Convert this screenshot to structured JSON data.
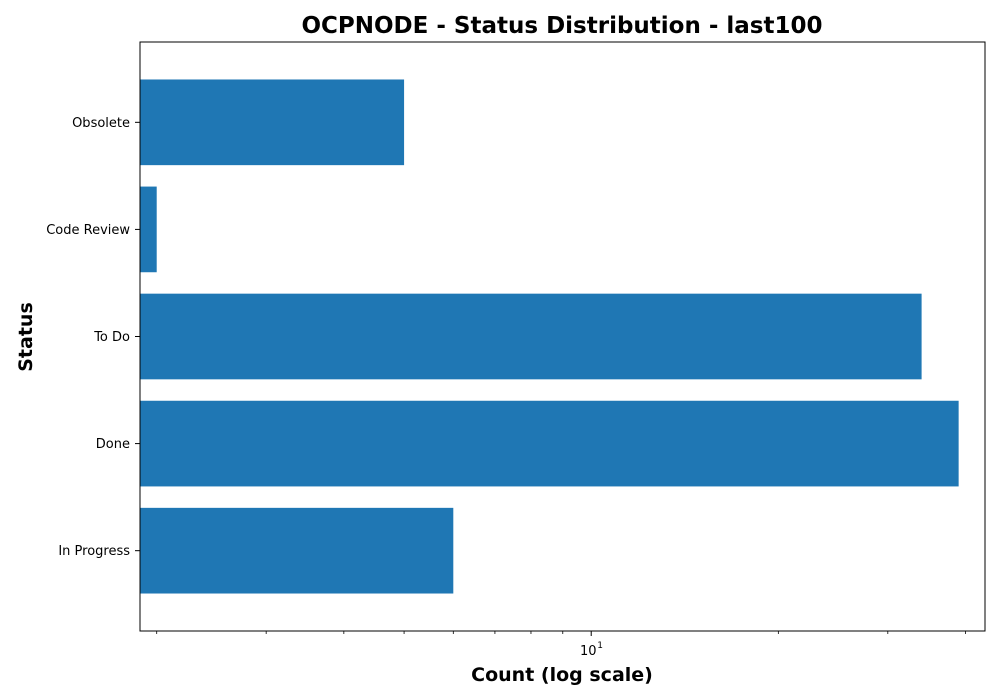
{
  "chart_data": {
    "type": "bar",
    "orientation": "horizontal",
    "title": "OCPNODE - Status Distribution - last100",
    "xlabel": "Count (log scale)",
    "ylabel": "Status",
    "xscale": "log",
    "xlim": [
      1.88,
      43
    ],
    "x_ticks": [
      {
        "base": "10",
        "exp": "1",
        "value": 10
      }
    ],
    "categories": [
      "Obsolete",
      "Code Review",
      "To Do",
      "Done",
      "In Progress"
    ],
    "values": [
      5,
      2,
      34,
      39,
      6
    ],
    "bar_color": "#1f77b4",
    "grid": false
  }
}
